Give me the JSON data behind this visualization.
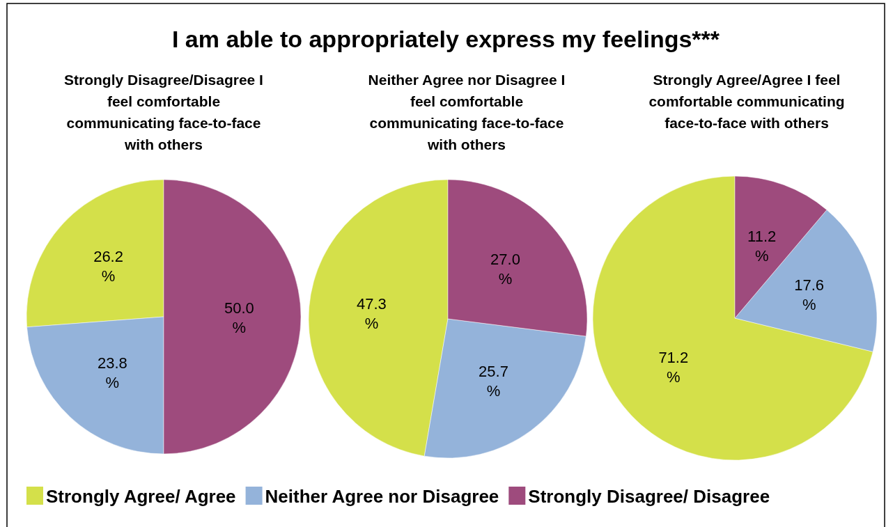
{
  "chart_data": [
    {
      "type": "other",
      "title": "I am able to appropriately express my feelings***"
    },
    {
      "type": "pie",
      "title": "Strongly Disagree/Disagree I feel comfortable communicating face-to-face with others",
      "categories": [
        "Strongly Agree/ Agree",
        "Neither Agree nor Disagree",
        "Strongly Disagree/ Disagree"
      ],
      "values": [
        26.2,
        23.8,
        50.0
      ],
      "colors": [
        "#d4e04a",
        "#94b3da",
        "#9e4b7d"
      ],
      "value_labels": [
        "26.2 %",
        "23.8 %",
        "50.0 %"
      ],
      "legend": "bottom"
    },
    {
      "type": "pie",
      "title": "Neither Agree nor Disagree I feel comfortable communicating face-to-face with others",
      "categories": [
        null,
        null,
        null
      ],
      "values": [
        47.3,
        25.7,
        27.0
      ],
      "colors": [
        "#d4e04a",
        "#94b3da",
        "#9e4b7d"
      ],
      "value_labels": [
        "47.3 %",
        "25.7 %",
        "27.0 %"
      ]
    },
    {
      "type": "pie",
      "title": "Strongly Agree/Agree I feel comfortable communicating face-to-face with others",
      "categories": [
        null,
        null,
        null
      ],
      "values": [
        71.2,
        17.6,
        11.2
      ],
      "colors": [
        "#d4e04a",
        "#94b3da",
        "#9e4b7d"
      ],
      "value_labels": [
        "71.2 %",
        "17.6 %",
        "11.2 %"
      ]
    }
  ]
}
